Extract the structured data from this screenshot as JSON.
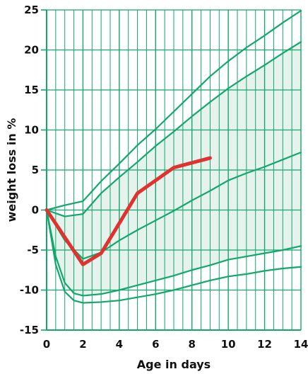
{
  "chart_data": {
    "type": "line",
    "xlabel": "Age in days",
    "ylabel": "weight loss in %",
    "xlim": [
      0,
      14
    ],
    "ylim": [
      -15,
      25
    ],
    "x_ticks": [
      "0",
      "2",
      "4",
      "6",
      "8",
      "10",
      "12",
      "14"
    ],
    "y_ticks": [
      "-15",
      "-10",
      "-5",
      "0",
      "5",
      "10",
      "15",
      "20",
      "25"
    ],
    "grid": true,
    "colors": {
      "grid": "#13a76c",
      "reference_curves": "#13a76c",
      "band_fill": "#e6f3ec",
      "highlight": "#e0322f"
    },
    "series": [
      {
        "role": "reference",
        "x": [
          0,
          1,
          2,
          3,
          4,
          5,
          6,
          7,
          8,
          9,
          10,
          11,
          12,
          13,
          14
        ],
        "y": [
          0,
          0.6,
          1.1,
          3.6,
          5.8,
          8.1,
          10.1,
          12.3,
          14.5,
          16.7,
          18.6,
          20.3,
          21.8,
          23.4,
          24.9
        ]
      },
      {
        "role": "reference-band-upper",
        "x": [
          0,
          1,
          2,
          3,
          4,
          5,
          6,
          7,
          8,
          9,
          10,
          11,
          12,
          13,
          14
        ],
        "y": [
          0,
          -0.8,
          -0.5,
          2.1,
          4.1,
          6.0,
          8.0,
          9.8,
          11.7,
          13.5,
          15.2,
          16.7,
          18.1,
          19.6,
          21.0
        ]
      },
      {
        "role": "reference",
        "x": [
          0,
          1,
          2,
          3,
          4,
          5,
          6,
          7,
          8,
          9,
          10,
          11,
          12,
          13,
          14
        ],
        "y": [
          0,
          -3.8,
          -6.1,
          -5.3,
          -3.8,
          -2.5,
          -1.3,
          -0.1,
          1.2,
          2.4,
          3.7,
          4.6,
          5.4,
          6.3,
          7.2
        ]
      },
      {
        "role": "reference-band-lower",
        "x": [
          0,
          0.5,
          1,
          1.5,
          2,
          3,
          4,
          5,
          6,
          7,
          8,
          9,
          10,
          11,
          12,
          13,
          14
        ],
        "y": [
          0,
          -5.8,
          -9.1,
          -10.4,
          -10.7,
          -10.5,
          -10.0,
          -9.4,
          -8.8,
          -8.2,
          -7.5,
          -6.9,
          -6.2,
          -5.8,
          -5.4,
          -5.0,
          -4.5
        ]
      },
      {
        "role": "reference",
        "x": [
          0,
          0.5,
          1,
          1.5,
          2,
          3,
          4,
          5,
          6,
          7,
          8,
          9,
          10,
          11,
          12,
          13,
          14
        ],
        "y": [
          0,
          -6.8,
          -10.2,
          -11.3,
          -11.6,
          -11.5,
          -11.3,
          -10.9,
          -10.5,
          -10.0,
          -9.4,
          -8.8,
          -8.3,
          -8.0,
          -7.6,
          -7.3,
          -7.1
        ]
      },
      {
        "role": "highlight",
        "x": [
          0,
          2,
          3,
          5,
          7,
          9
        ],
        "y": [
          0,
          -6.8,
          -5.4,
          2.1,
          5.3,
          6.5
        ]
      }
    ]
  }
}
